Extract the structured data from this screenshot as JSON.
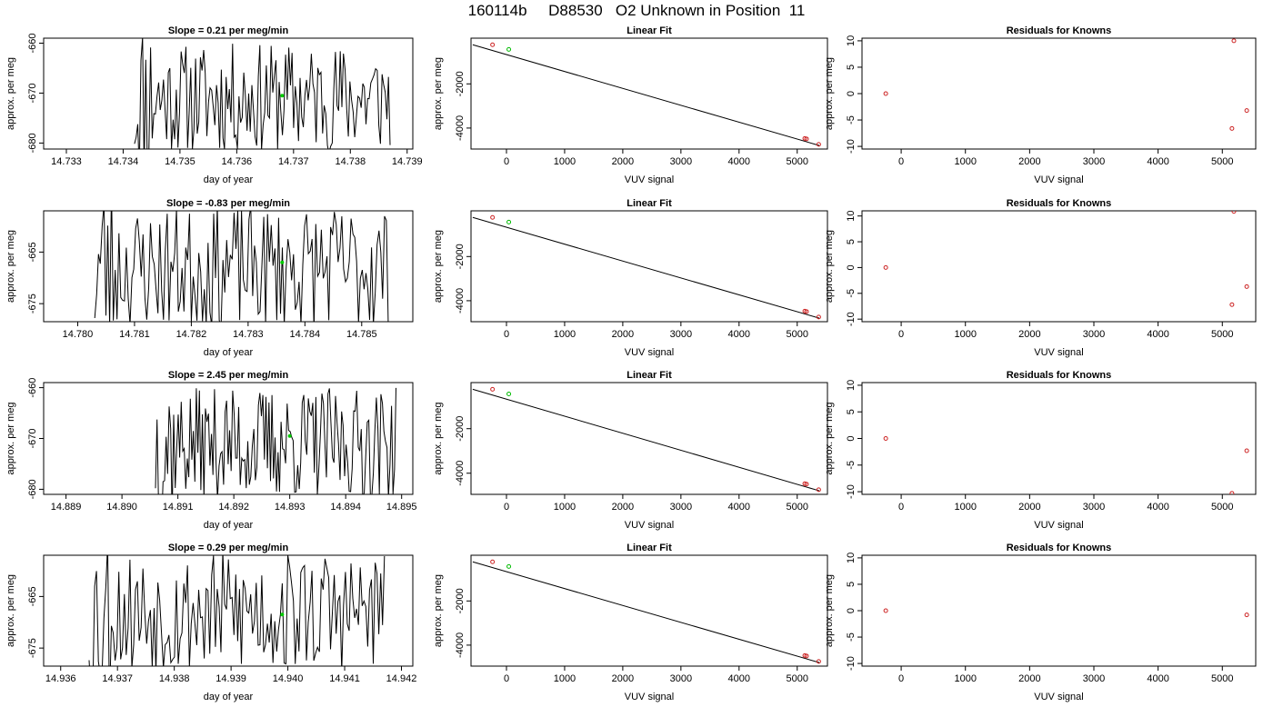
{
  "figure": {
    "title": "160114b     D88530   O2 Unknown in Position  11"
  },
  "chart_data": [
    {
      "type": "line",
      "title": "Slope =  0.21  per meg/min",
      "xlabel": "day of year",
      "ylabel": "approx. per meg",
      "xlim": [
        14.7326,
        14.7391
      ],
      "ylim": [
        -681.2,
        -659.0
      ],
      "xticks": [
        "14.733",
        "14.734",
        "14.735",
        "14.736",
        "14.737",
        "14.738",
        "14.739"
      ],
      "yticks": [
        "-680",
        "-670",
        "-660"
      ],
      "x_start": 14.7342,
      "x_end": 14.7387,
      "signal_mean": -671,
      "signal_amplitude": 11,
      "signal_seed": 11,
      "highlight_point": {
        "x": 14.7368,
        "y": -670.5,
        "color": "#00cc00"
      }
    },
    {
      "type": "scatter",
      "title": "Linear Fit",
      "xlabel": "VUV signal",
      "ylabel": "approx. per meg",
      "xlim": [
        -610,
        5520
      ],
      "ylim": [
        -4950,
        70
      ],
      "xticks": [
        "0",
        "1000",
        "2000",
        "3000",
        "4000",
        "5000"
      ],
      "yticks": [
        "-2000",
        "-4000"
      ],
      "fit_line": {
        "x": [
          -580,
          5380
        ],
        "y": [
          -230,
          -4790
        ]
      },
      "points_red": {
        "x": [
          -240,
          5130,
          5160,
          5370
        ],
        "y": [
          -230,
          -4470,
          -4490,
          -4740
        ]
      },
      "points_green": {
        "x": [
          40
        ],
        "y": [
          -440
        ]
      }
    },
    {
      "type": "scatter",
      "title": "Residuals for Knowns",
      "xlabel": "VUV signal",
      "ylabel": "approx. per meg",
      "xlim": [
        -610,
        5520
      ],
      "ylim": [
        -10.5,
        10.5
      ],
      "xticks": [
        "0",
        "1000",
        "2000",
        "3000",
        "4000",
        "5000"
      ],
      "yticks": [
        "-10",
        "-5",
        "0",
        "5",
        "10"
      ],
      "points_red": {
        "x": [
          -240,
          5150,
          5180,
          5380
        ],
        "y": [
          0,
          -6.6,
          10,
          -3.2
        ]
      }
    },
    {
      "type": "line",
      "title": "Slope =  -0.83  per meg/min",
      "xlabel": "day of year",
      "ylabel": "approx. per meg",
      "xlim": [
        14.7794,
        14.7859
      ],
      "ylim": [
        -678.5,
        -657.0
      ],
      "xticks": [
        "14.780",
        "14.781",
        "14.782",
        "14.783",
        "14.784",
        "14.785"
      ],
      "yticks": [
        "-675",
        "-665"
      ],
      "x_start": 14.7803,
      "x_end": 14.7855,
      "signal_mean": -668,
      "signal_amplitude": 12,
      "signal_seed": 23,
      "highlight_point": {
        "x": 14.7836,
        "y": -667.0,
        "color": "#00cc00"
      }
    },
    {
      "type": "scatter",
      "title": "Linear Fit",
      "xlabel": "VUV signal",
      "ylabel": "approx. per meg",
      "xlim": [
        -610,
        5520
      ],
      "ylim": [
        -4950,
        70
      ],
      "xticks": [
        "0",
        "1000",
        "2000",
        "3000",
        "4000",
        "5000"
      ],
      "yticks": [
        "-2000",
        "-4000"
      ],
      "fit_line": {
        "x": [
          -580,
          5380
        ],
        "y": [
          -230,
          -4790
        ]
      },
      "points_red": {
        "x": [
          -240,
          5130,
          5160,
          5370
        ],
        "y": [
          -230,
          -4470,
          -4490,
          -4740
        ]
      },
      "points_green": {
        "x": [
          40
        ],
        "y": [
          -440
        ]
      }
    },
    {
      "type": "scatter",
      "title": "Residuals for Knowns",
      "xlabel": "VUV signal",
      "ylabel": "approx. per meg",
      "xlim": [
        -610,
        5520
      ],
      "ylim": [
        -10.5,
        11.0
      ],
      "xticks": [
        "0",
        "1000",
        "2000",
        "3000",
        "4000",
        "5000"
      ],
      "yticks": [
        "-10",
        "-5",
        "0",
        "5",
        "10"
      ],
      "points_red": {
        "x": [
          -240,
          5150,
          5180,
          5380
        ],
        "y": [
          0,
          -7.2,
          10.9,
          -3.7
        ]
      }
    },
    {
      "type": "line",
      "title": "Slope =  2.45  per meg/min",
      "xlabel": "day of year",
      "ylabel": "approx. per meg",
      "xlim": [
        14.8886,
        14.8952
      ],
      "ylim": [
        -681.0,
        -659.0
      ],
      "xticks": [
        "14.889",
        "14.890",
        "14.891",
        "14.892",
        "14.893",
        "14.894",
        "14.895"
      ],
      "yticks": [
        "-680",
        "-670",
        "-660"
      ],
      "x_start": 14.8906,
      "x_end": 14.8949,
      "signal_mean": -671,
      "signal_amplitude": 11,
      "signal_seed": 37,
      "highlight_point": {
        "x": 14.893,
        "y": -669.5,
        "color": "#00cc00"
      }
    },
    {
      "type": "scatter",
      "title": "Linear Fit",
      "xlabel": "VUV signal",
      "ylabel": "approx. per meg",
      "xlim": [
        -610,
        5520
      ],
      "ylim": [
        -4950,
        70
      ],
      "xticks": [
        "0",
        "1000",
        "2000",
        "3000",
        "4000",
        "5000"
      ],
      "yticks": [
        "-2000",
        "-4000"
      ],
      "fit_line": {
        "x": [
          -580,
          5380
        ],
        "y": [
          -230,
          -4790
        ]
      },
      "points_red": {
        "x": [
          -240,
          5130,
          5160,
          5370
        ],
        "y": [
          -230,
          -4470,
          -4490,
          -4740
        ]
      },
      "points_green": {
        "x": [
          40
        ],
        "y": [
          -440
        ]
      }
    },
    {
      "type": "scatter",
      "title": "Residuals for Knowns",
      "xlabel": "VUV signal",
      "ylabel": "approx. per meg",
      "xlim": [
        -610,
        5520
      ],
      "ylim": [
        -10.5,
        10.5
      ],
      "xticks": [
        "0",
        "1000",
        "2000",
        "3000",
        "4000",
        "5000"
      ],
      "yticks": [
        "-10",
        "-5",
        "0",
        "5",
        "10"
      ],
      "points_red": {
        "x": [
          -240,
          5150,
          5380
        ],
        "y": [
          0,
          -10.3,
          -2.3
        ]
      }
    },
    {
      "type": "line",
      "title": "Slope =  0.29  per meg/min",
      "xlabel": "day of year",
      "ylabel": "approx. per meg",
      "xlim": [
        14.9357,
        14.9422
      ],
      "ylim": [
        -678.5,
        -657.0
      ],
      "xticks": [
        "14.936",
        "14.937",
        "14.938",
        "14.939",
        "14.940",
        "14.941",
        "14.942"
      ],
      "yticks": [
        "-675",
        "-665"
      ],
      "x_start": 14.9365,
      "x_end": 14.9417,
      "signal_mean": -668,
      "signal_amplitude": 12,
      "signal_seed": 53,
      "highlight_point": {
        "x": 14.9399,
        "y": -668.5,
        "color": "#00cc00"
      }
    },
    {
      "type": "scatter",
      "title": "Linear Fit",
      "xlabel": "VUV signal",
      "ylabel": "approx. per meg",
      "xlim": [
        -610,
        5520
      ],
      "ylim": [
        -4950,
        70
      ],
      "xticks": [
        "0",
        "1000",
        "2000",
        "3000",
        "4000",
        "5000"
      ],
      "yticks": [
        "-2000",
        "-4000"
      ],
      "fit_line": {
        "x": [
          -580,
          5380
        ],
        "y": [
          -230,
          -4790
        ]
      },
      "points_red": {
        "x": [
          -240,
          5130,
          5160,
          5370
        ],
        "y": [
          -230,
          -4470,
          -4490,
          -4740
        ]
      },
      "points_green": {
        "x": [
          40
        ],
        "y": [
          -440
        ]
      }
    },
    {
      "type": "scatter",
      "title": "Residuals for Knowns",
      "xlabel": "VUV signal",
      "ylabel": "approx. per meg",
      "xlim": [
        -610,
        5520
      ],
      "ylim": [
        -10.5,
        10.5
      ],
      "xticks": [
        "0",
        "1000",
        "2000",
        "3000",
        "4000",
        "5000"
      ],
      "yticks": [
        "-10",
        "-5",
        "0",
        "5",
        "10"
      ],
      "points_red": {
        "x": [
          -240,
          5380
        ],
        "y": [
          0,
          -0.8
        ]
      }
    }
  ]
}
